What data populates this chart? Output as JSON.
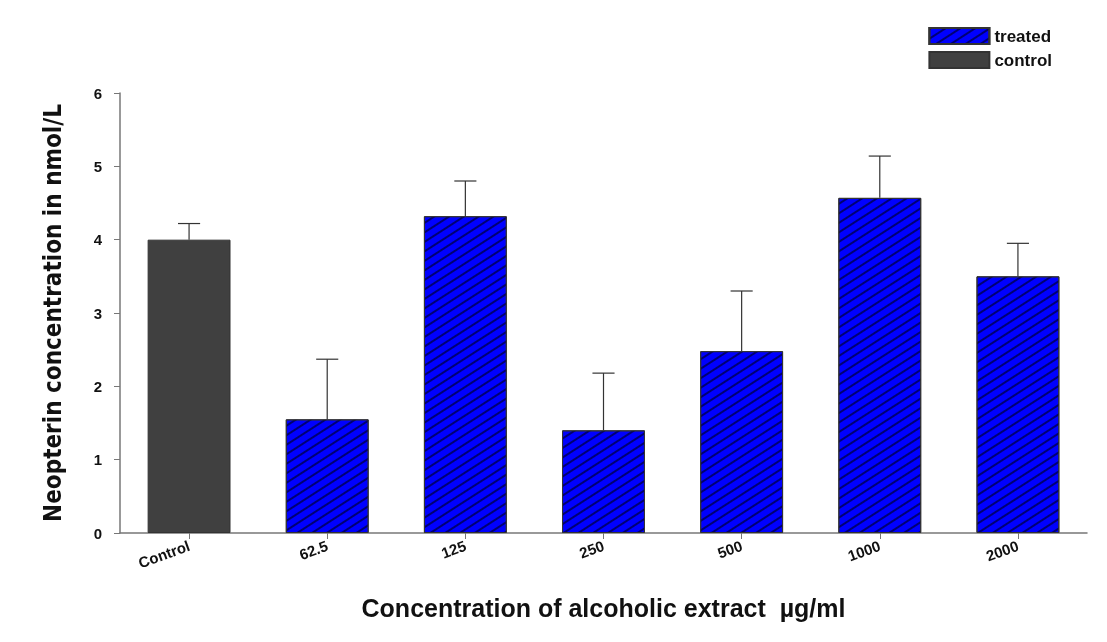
{
  "chart_data": {
    "type": "bar",
    "xlabel": "Concentration of alcoholic extract  µg/ml",
    "ylabel": "Neopterin concentration in nmol/L",
    "categories": [
      "Control",
      "62.5",
      "125",
      "250",
      "500",
      "1000",
      "2000"
    ],
    "series": [
      {
        "name": "treated",
        "color": "#0000ff",
        "values": [
          null,
          1.55,
          4.32,
          1.4,
          2.48,
          4.57,
          3.5
        ],
        "errors": [
          null,
          [
            1.55,
            2.37
          ],
          [
            4.32,
            4.8
          ],
          [
            1.4,
            2.18
          ],
          [
            2.48,
            3.3
          ],
          [
            4.57,
            5.14
          ],
          [
            3.5,
            3.95
          ]
        ]
      },
      {
        "name": "control",
        "color": "#404040",
        "values": [
          4.0,
          null,
          null,
          null,
          null,
          null,
          null
        ],
        "errors": [
          [
            4.0,
            4.22
          ],
          null,
          null,
          null,
          null,
          null,
          null
        ]
      }
    ],
    "ylim": [
      0,
      6
    ],
    "yticks": [
      0,
      1,
      2,
      3,
      4,
      5,
      6
    ],
    "grid": false,
    "legend": "top right"
  }
}
